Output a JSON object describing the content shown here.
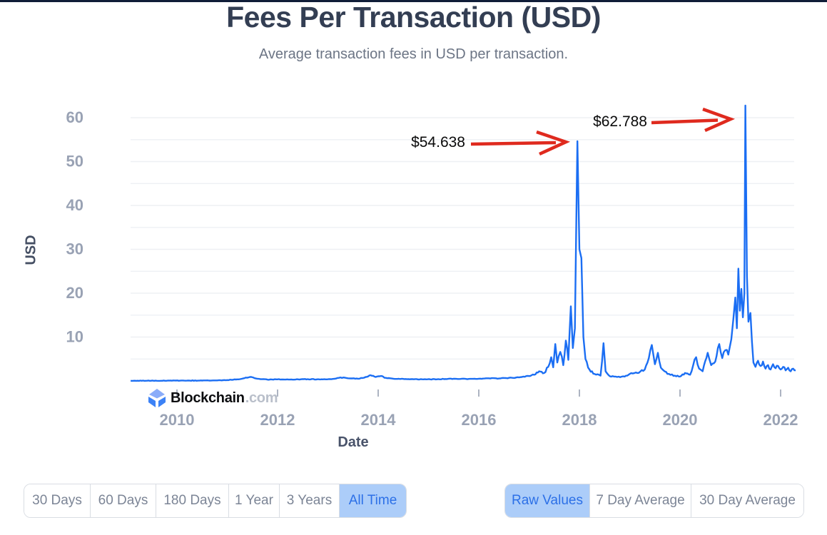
{
  "page": {
    "title": "Fees Per Transaction (USD)",
    "subtitle": "Average transaction fees in USD per transaction."
  },
  "watermark": {
    "brand": "Blockchain",
    "domain": ".com"
  },
  "axes": {
    "y_label": "USD",
    "x_label": "Date",
    "y_ticks": [
      10,
      20,
      30,
      40,
      50,
      60
    ],
    "x_ticks": [
      2010,
      2012,
      2014,
      2016,
      2018,
      2020,
      2022
    ]
  },
  "colors": {
    "line": "#1b6ef3",
    "annotation_red": "#df2a1e",
    "grid": "#eef0f4",
    "tick_text": "#99a2b4",
    "selected_bg": "#accdf9",
    "selected_text": "#2c70e7",
    "top_border": "#101d38"
  },
  "controls": {
    "time_ranges": [
      {
        "label": "30 Days",
        "selected": false
      },
      {
        "label": "60 Days",
        "selected": false
      },
      {
        "label": "180 Days",
        "selected": false
      },
      {
        "label": "1 Year",
        "selected": false
      },
      {
        "label": "3 Years",
        "selected": false
      },
      {
        "label": "All Time",
        "selected": true
      }
    ],
    "value_modes": [
      {
        "label": "Raw Values",
        "selected": true
      },
      {
        "label": "7 Day Average",
        "selected": false
      },
      {
        "label": "30 Day Average",
        "selected": false
      }
    ]
  },
  "chart_data": {
    "type": "line",
    "title": "Fees Per Transaction (USD)",
    "xlabel": "Date",
    "ylabel": "USD",
    "xlim": [
      2009.05,
      2022.35
    ],
    "ylim": [
      0,
      63
    ],
    "x_ticks": [
      2010,
      2012,
      2014,
      2016,
      2018,
      2020,
      2022
    ],
    "y_ticks": [
      10,
      20,
      30,
      40,
      50,
      60
    ],
    "grid": "horizontal every 5 USD",
    "legend": "none",
    "callouts": [
      {
        "x": 2017.96,
        "y": 54.638,
        "label": "$54.638"
      },
      {
        "x": 2021.3,
        "y": 62.788,
        "label": "$62.788"
      }
    ],
    "series": [
      {
        "name": "fees-per-transaction-usd",
        "color": "#1b6ef3",
        "points": [
          [
            2009.08,
            0.03
          ],
          [
            2009.3,
            0.04
          ],
          [
            2009.6,
            0.03
          ],
          [
            2009.9,
            0.05
          ],
          [
            2010.2,
            0.06
          ],
          [
            2010.5,
            0.08
          ],
          [
            2010.8,
            0.12
          ],
          [
            2011.0,
            0.2
          ],
          [
            2011.2,
            0.35
          ],
          [
            2011.45,
            0.9
          ],
          [
            2011.6,
            0.5
          ],
          [
            2011.8,
            0.3
          ],
          [
            2012.0,
            0.35
          ],
          [
            2012.3,
            0.3
          ],
          [
            2012.6,
            0.4
          ],
          [
            2012.9,
            0.35
          ],
          [
            2013.1,
            0.45
          ],
          [
            2013.25,
            0.8
          ],
          [
            2013.4,
            0.6
          ],
          [
            2013.6,
            0.5
          ],
          [
            2013.75,
            0.9
          ],
          [
            2013.85,
            1.3
          ],
          [
            2013.95,
            0.9
          ],
          [
            2014.05,
            1.1
          ],
          [
            2014.15,
            0.7
          ],
          [
            2014.3,
            0.5
          ],
          [
            2014.6,
            0.4
          ],
          [
            2014.9,
            0.35
          ],
          [
            2015.2,
            0.4
          ],
          [
            2015.5,
            0.5
          ],
          [
            2015.8,
            0.45
          ],
          [
            2016.0,
            0.5
          ],
          [
            2016.2,
            0.6
          ],
          [
            2016.4,
            0.55
          ],
          [
            2016.6,
            0.7
          ],
          [
            2016.8,
            0.8
          ],
          [
            2017.0,
            1.1
          ],
          [
            2017.1,
            1.4
          ],
          [
            2017.2,
            2.2
          ],
          [
            2017.3,
            1.8
          ],
          [
            2017.38,
            3.2
          ],
          [
            2017.44,
            5.4
          ],
          [
            2017.48,
            3.1
          ],
          [
            2017.52,
            8.4
          ],
          [
            2017.56,
            4.2
          ],
          [
            2017.62,
            6.6
          ],
          [
            2017.68,
            3.6
          ],
          [
            2017.73,
            9.2
          ],
          [
            2017.78,
            4.8
          ],
          [
            2017.83,
            17.0
          ],
          [
            2017.87,
            7.5
          ],
          [
            2017.91,
            12.0
          ],
          [
            2017.96,
            54.638
          ],
          [
            2018.0,
            30.0
          ],
          [
            2018.04,
            28.0
          ],
          [
            2018.08,
            10.0
          ],
          [
            2018.12,
            5.0
          ],
          [
            2018.2,
            2.6
          ],
          [
            2018.3,
            1.6
          ],
          [
            2018.42,
            1.2
          ],
          [
            2018.48,
            8.6
          ],
          [
            2018.52,
            2.2
          ],
          [
            2018.6,
            1.1
          ],
          [
            2018.75,
            0.9
          ],
          [
            2018.9,
            1.0
          ],
          [
            2019.0,
            1.6
          ],
          [
            2019.15,
            1.8
          ],
          [
            2019.3,
            2.6
          ],
          [
            2019.38,
            5.2
          ],
          [
            2019.44,
            8.2
          ],
          [
            2019.5,
            3.8
          ],
          [
            2019.56,
            6.4
          ],
          [
            2019.62,
            3.0
          ],
          [
            2019.75,
            1.6
          ],
          [
            2019.9,
            1.2
          ],
          [
            2020.0,
            1.0
          ],
          [
            2020.1,
            1.8
          ],
          [
            2020.2,
            1.4
          ],
          [
            2020.32,
            5.4
          ],
          [
            2020.38,
            2.8
          ],
          [
            2020.45,
            2.2
          ],
          [
            2020.55,
            6.4
          ],
          [
            2020.62,
            3.6
          ],
          [
            2020.7,
            4.4
          ],
          [
            2020.78,
            8.4
          ],
          [
            2020.84,
            5.2
          ],
          [
            2020.9,
            7.0
          ],
          [
            2020.96,
            6.0
          ],
          [
            2021.02,
            9.5
          ],
          [
            2021.06,
            14.0
          ],
          [
            2021.1,
            19.0
          ],
          [
            2021.13,
            12.0
          ],
          [
            2021.16,
            25.6
          ],
          [
            2021.19,
            16.0
          ],
          [
            2021.22,
            21.0
          ],
          [
            2021.25,
            14.5
          ],
          [
            2021.28,
            20.0
          ],
          [
            2021.3,
            62.788
          ],
          [
            2021.33,
            24.0
          ],
          [
            2021.36,
            13.5
          ],
          [
            2021.4,
            15.5
          ],
          [
            2021.43,
            9.0
          ],
          [
            2021.46,
            4.2
          ],
          [
            2021.5,
            3.2
          ],
          [
            2021.55,
            4.6
          ],
          [
            2021.6,
            3.4
          ],
          [
            2021.65,
            4.4
          ],
          [
            2021.7,
            2.8
          ],
          [
            2021.75,
            3.6
          ],
          [
            2021.8,
            2.6
          ],
          [
            2021.85,
            3.8
          ],
          [
            2021.9,
            2.9
          ],
          [
            2021.95,
            3.4
          ],
          [
            2022.0,
            2.6
          ],
          [
            2022.05,
            3.2
          ],
          [
            2022.1,
            2.4
          ],
          [
            2022.15,
            3.0
          ],
          [
            2022.2,
            2.2
          ],
          [
            2022.25,
            2.8
          ],
          [
            2022.3,
            2.4
          ]
        ]
      }
    ]
  }
}
